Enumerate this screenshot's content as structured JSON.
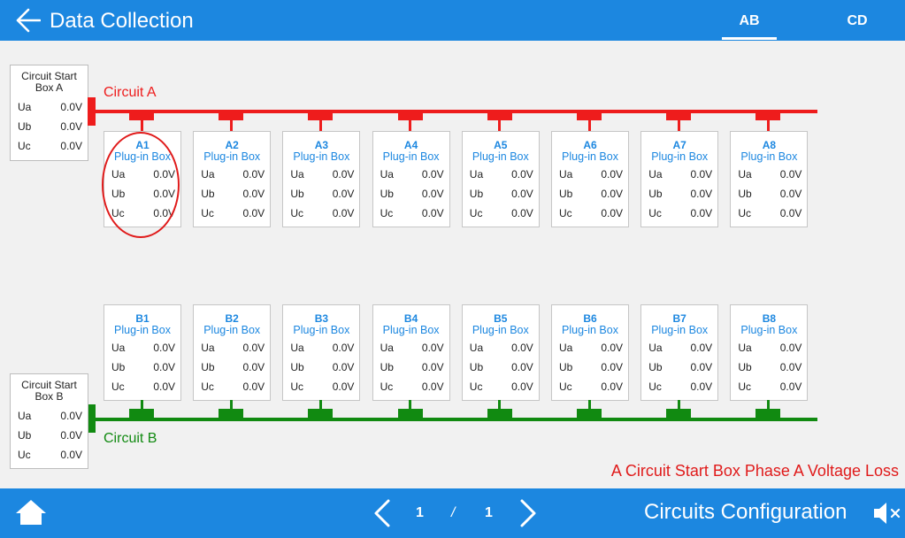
{
  "header": {
    "title": "Data Collection",
    "tabs": [
      {
        "label": "AB",
        "active": true
      },
      {
        "label": "CD",
        "active": false
      }
    ]
  },
  "start_boxes": [
    {
      "title_line1": "Circuit Start",
      "title_line2": "Box A",
      "rows": [
        {
          "key": "Ua",
          "value": "0.0V"
        },
        {
          "key": "Ub",
          "value": "0.0V"
        },
        {
          "key": "Uc",
          "value": "0.0V"
        }
      ]
    },
    {
      "title_line1": "Circuit Start",
      "title_line2": "Box B",
      "rows": [
        {
          "key": "Ua",
          "value": "0.0V"
        },
        {
          "key": "Ub",
          "value": "0.0V"
        },
        {
          "key": "Uc",
          "value": "0.0V"
        }
      ]
    }
  ],
  "circuits": [
    {
      "label": "Circuit A",
      "color": "#ee1c1c"
    },
    {
      "label": "Circuit B",
      "color": "#118a11"
    }
  ],
  "plugin_boxes_a": [
    {
      "id": "A1",
      "name": "Plug-in Box",
      "ua": "0.0V",
      "ub": "0.0V",
      "uc": "0.0V"
    },
    {
      "id": "A2",
      "name": "Plug-in Box",
      "ua": "0.0V",
      "ub": "0.0V",
      "uc": "0.0V"
    },
    {
      "id": "A3",
      "name": "Plug-in Box",
      "ua": "0.0V",
      "ub": "0.0V",
      "uc": "0.0V"
    },
    {
      "id": "A4",
      "name": "Plug-in Box",
      "ua": "0.0V",
      "ub": "0.0V",
      "uc": "0.0V"
    },
    {
      "id": "A5",
      "name": "Plug-in Box",
      "ua": "0.0V",
      "ub": "0.0V",
      "uc": "0.0V"
    },
    {
      "id": "A6",
      "name": "Plug-in Box",
      "ua": "0.0V",
      "ub": "0.0V",
      "uc": "0.0V"
    },
    {
      "id": "A7",
      "name": "Plug-in Box",
      "ua": "0.0V",
      "ub": "0.0V",
      "uc": "0.0V"
    },
    {
      "id": "A8",
      "name": "Plug-in Box",
      "ua": "0.0V",
      "ub": "0.0V",
      "uc": "0.0V"
    }
  ],
  "plugin_boxes_b": [
    {
      "id": "B1",
      "name": "Plug-in Box",
      "ua": "0.0V",
      "ub": "0.0V",
      "uc": "0.0V"
    },
    {
      "id": "B2",
      "name": "Plug-in Box",
      "ua": "0.0V",
      "ub": "0.0V",
      "uc": "0.0V"
    },
    {
      "id": "B3",
      "name": "Plug-in Box",
      "ua": "0.0V",
      "ub": "0.0V",
      "uc": "0.0V"
    },
    {
      "id": "B4",
      "name": "Plug-in Box",
      "ua": "0.0V",
      "ub": "0.0V",
      "uc": "0.0V"
    },
    {
      "id": "B5",
      "name": "Plug-in Box",
      "ua": "0.0V",
      "ub": "0.0V",
      "uc": "0.0V"
    },
    {
      "id": "B6",
      "name": "Plug-in Box",
      "ua": "0.0V",
      "ub": "0.0V",
      "uc": "0.0V"
    },
    {
      "id": "B7",
      "name": "Plug-in Box",
      "ua": "0.0V",
      "ub": "0.0V",
      "uc": "0.0V"
    },
    {
      "id": "B8",
      "name": "Plug-in Box",
      "ua": "0.0V",
      "ub": "0.0V",
      "uc": "0.0V"
    }
  ],
  "row_labels": {
    "ua": "Ua",
    "ub": "Ub",
    "uc": "Uc"
  },
  "alarm": "A Circuit Start Box Phase A Voltage Loss",
  "footer": {
    "page_current": "1",
    "page_separator": "/",
    "page_total": "1",
    "config_label": "Circuits Configuration"
  },
  "icons": {
    "back": "back-arrow-icon",
    "home": "home-icon",
    "prev": "chevron-left-icon",
    "next": "chevron-right-icon",
    "mute": "speaker-muted-icon"
  },
  "colors": {
    "accent": "#1c87e0",
    "circuit_a": "#ee1c1c",
    "circuit_b": "#118a11",
    "alarm": "#e01b1b"
  }
}
